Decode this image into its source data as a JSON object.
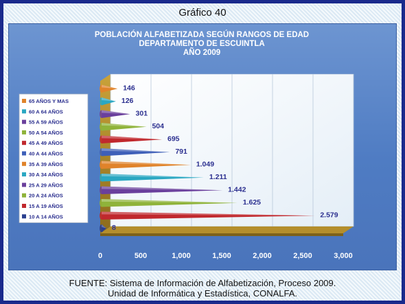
{
  "figure_title": "Gráfico 40",
  "chart_data": {
    "type": "bar",
    "orientation": "horizontal",
    "title_lines": [
      "POBLACIÓN ALFABETIZADA SEGÚN RANGOS DE EDAD",
      "DEPARTAMENTO DE ESCUINTLA",
      "AÑO 2009"
    ],
    "categories": [
      "10 A 14 AÑOS",
      "15 A 19 AÑOS",
      "20 A 24 AÑOS",
      "25 A 29 AÑOS",
      "30 A 34 AÑOS",
      "35 A 39 AÑOS",
      "40 A 44 AÑOS",
      "45 A 49 AÑOS",
      "50 A 54 AÑOS",
      "55 A 59 AÑOS",
      "60 A 64 AÑOS",
      "65 AÑOS Y MAS"
    ],
    "values": [
      8,
      2579,
      1625,
      1442,
      1211,
      1049,
      791,
      695,
      504,
      301,
      126,
      146
    ],
    "value_labels": [
      "8",
      "2.579",
      "1.625",
      "1.442",
      "1.211",
      "1.049",
      "791",
      "695",
      "504",
      "301",
      "126",
      "146"
    ],
    "colors": [
      "#2a3f8f",
      "#c0282d",
      "#8fb33a",
      "#6a3f9c",
      "#2aa7c2",
      "#e0832a",
      "#3e5fb8",
      "#c0282d",
      "#8fb33a",
      "#6a3f9c",
      "#2aa7c2",
      "#e0832a"
    ],
    "xlim": [
      0,
      3000
    ],
    "xticks": [
      0,
      500,
      1000,
      1500,
      2000,
      2500,
      3000
    ],
    "xtick_labels": [
      "0",
      "500",
      "1,000",
      "1,500",
      "2,000",
      "2,500",
      "3,000"
    ],
    "grid": true,
    "legend": "left",
    "legend_order": [
      "65 AÑOS Y MAS",
      "60 A 64 AÑOS",
      "55 A 59 AÑOS",
      "50 A 54 AÑOS",
      "45 A 49 AÑOS",
      "40 A 44 AÑOS",
      "35 A 39 AÑOS",
      "30 A 34 AÑOS",
      "25 A 29 AÑOS",
      "20 A 24 AÑOS",
      "15 A 19 AÑOS",
      "10 A 14 AÑOS"
    ]
  },
  "source_lines": [
    "FUENTE: Sistema de Información de Alfabetización, Proceso 2009.",
    "Unidad de Informática y Estadística, CONALFA."
  ]
}
